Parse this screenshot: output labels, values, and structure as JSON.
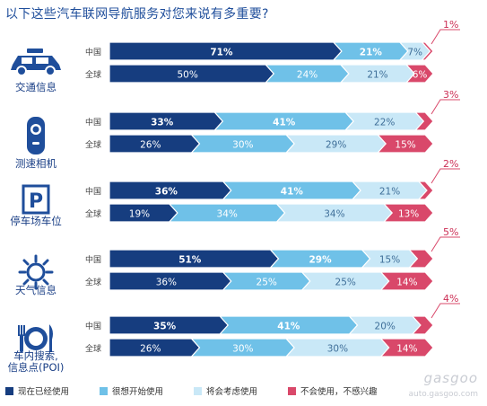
{
  "title": "以下这些汽车联网导航服务对您来说有多重要?",
  "colors": {
    "using_now": "#163d7f",
    "plan_to_use": "#6fc1e8",
    "will_consider": "#c9e8f7",
    "wont_use": "#d9486a",
    "title": "#1f4e9b"
  },
  "chart_data": {
    "type": "bar",
    "stacked": true,
    "orientation": "horizontal",
    "legend_position": "bottom",
    "series_names": [
      "现在已经使用",
      "很想开始使用",
      "将会考虑使用",
      "不会使用，不感兴趣"
    ],
    "categories": [
      {
        "name": "交通信息",
        "icon": "car-icon",
        "rows": [
          {
            "label": "中国",
            "values": [
              71,
              21,
              7,
              1
            ],
            "labels": [
              "71%",
              "21%",
              "7%",
              "1%"
            ]
          },
          {
            "label": "全球",
            "values": [
              50,
              24,
              21,
              6
            ],
            "labels": [
              "50%",
              "24%",
              "21%",
              "6%"
            ]
          }
        ]
      },
      {
        "name": "测速相机",
        "icon": "speed-camera-icon",
        "rows": [
          {
            "label": "中国",
            "values": [
              33,
              41,
              22,
              3
            ],
            "labels": [
              "33%",
              "41%",
              "22%",
              "3%"
            ]
          },
          {
            "label": "全球",
            "values": [
              26,
              30,
              29,
              15
            ],
            "labels": [
              "26%",
              "30%",
              "29%",
              "15%"
            ]
          }
        ]
      },
      {
        "name": "停车场车位",
        "icon": "parking-icon",
        "rows": [
          {
            "label": "中国",
            "values": [
              36,
              41,
              21,
              2
            ],
            "labels": [
              "36%",
              "41%",
              "21%",
              "2%"
            ]
          },
          {
            "label": "全球",
            "values": [
              19,
              34,
              34,
              13
            ],
            "labels": [
              "19%",
              "34%",
              "34%",
              "13%"
            ]
          }
        ]
      },
      {
        "name": "天气信息",
        "icon": "sun-icon",
        "rows": [
          {
            "label": "中国",
            "values": [
              51,
              29,
              15,
              5
            ],
            "labels": [
              "51%",
              "29%",
              "15%",
              "5%"
            ]
          },
          {
            "label": "全球",
            "values": [
              36,
              25,
              25,
              14
            ],
            "labels": [
              "36%",
              "25%",
              "25%",
              "14%"
            ]
          }
        ]
      },
      {
        "name": "车内搜索,\n信息点(POI)",
        "icon": "plate-fork-knife-icon",
        "rows": [
          {
            "label": "中国",
            "values": [
              35,
              41,
              20,
              4
            ],
            "labels": [
              "35%",
              "41%",
              "20%",
              "4%"
            ]
          },
          {
            "label": "全球",
            "values": [
              26,
              30,
              30,
              14
            ],
            "labels": [
              "26%",
              "30%",
              "30%",
              "14%"
            ]
          }
        ]
      }
    ]
  },
  "watermark": {
    "brand": "gasgoo",
    "url": "auto.gasgoo.com"
  }
}
